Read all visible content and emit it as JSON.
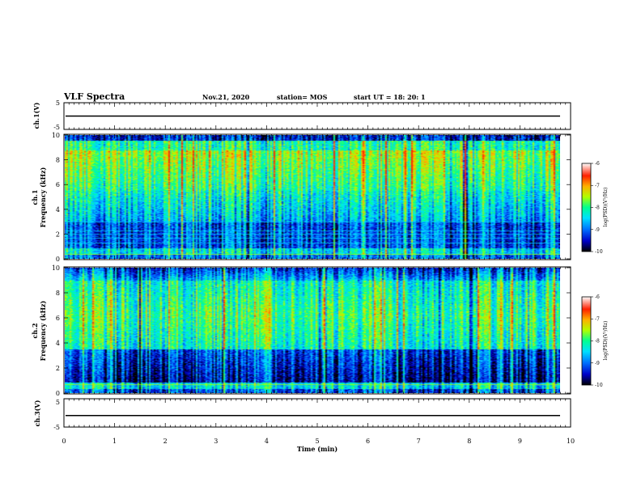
{
  "header": {
    "title": "VLF Spectra",
    "date": "Nov.21, 2020",
    "station": "station= MOS",
    "start_ut": "start  UT  =   18: 20: 1"
  },
  "colors": {
    "scale": [
      "#000000",
      "#0000c8",
      "#0070ff",
      "#00e0ff",
      "#00ff90",
      "#b0ff00",
      "#ffb000",
      "#ff2000",
      "#ffffff"
    ]
  },
  "chart_data": [
    {
      "type": "line",
      "name": "ch.1 waveform",
      "ylabel": "ch.1(V)",
      "ylim": [
        -5,
        5
      ],
      "yticks": [
        "5",
        "-5"
      ],
      "xlim": [
        0,
        10
      ],
      "trace_value": 0
    },
    {
      "type": "heatmap",
      "name": "ch.1 spectrogram",
      "ylabel_line1": "ch.1",
      "ylabel_line2": "Frequency  (kHz)",
      "ylim": [
        0,
        10
      ],
      "yticks": [
        "0",
        "2",
        "4",
        "6",
        "8",
        "10"
      ],
      "xlim": [
        0,
        9.83
      ],
      "colorbar": {
        "label": "log(PSD)(V²/Hz)",
        "range": [
          -10,
          -6
        ],
        "ticks": [
          "-6",
          "-7",
          "-8",
          "-9",
          "-10"
        ]
      }
    },
    {
      "type": "heatmap",
      "name": "ch.2 spectrogram",
      "ylabel_line1": "ch.2",
      "ylabel_line2": "Frequency  (kHz)",
      "ylim": [
        0,
        10
      ],
      "yticks": [
        "0",
        "2",
        "4",
        "6",
        "8",
        "10"
      ],
      "xlim": [
        0,
        9.83
      ],
      "colorbar": {
        "label": "log(PSD)(V²/Hz)",
        "range": [
          -10,
          -6
        ],
        "ticks": [
          "-6",
          "-7",
          "-8",
          "-9",
          "-10"
        ]
      }
    },
    {
      "type": "line",
      "name": "ch.3 waveform",
      "ylabel": "ch.3(V)",
      "ylim": [
        -5,
        5
      ],
      "yticks": [
        "5",
        "-5"
      ],
      "xlim": [
        0,
        10
      ],
      "trace_value": -1,
      "xlabel": "Time  (min)",
      "xticks": [
        "0",
        "1",
        "2",
        "3",
        "4",
        "5",
        "6",
        "7",
        "8",
        "9",
        "10"
      ]
    }
  ]
}
